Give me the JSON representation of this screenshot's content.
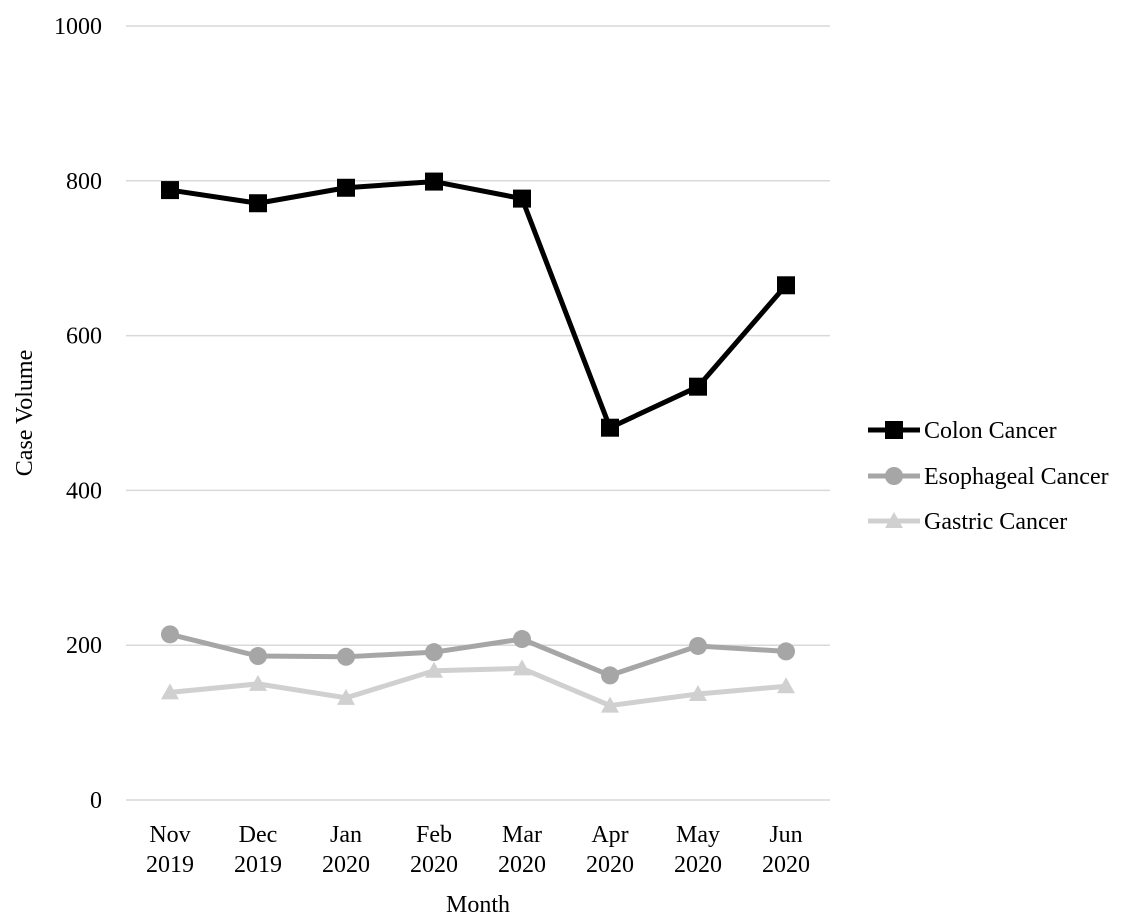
{
  "chart_data": {
    "type": "line",
    "xlabel": "Month",
    "ylabel": "Case Volume",
    "ylim": [
      0,
      1000
    ],
    "yticks": [
      0,
      200,
      400,
      600,
      800,
      1000
    ],
    "grid": "horizontal",
    "legend_position": "right",
    "categories": [
      [
        "Nov",
        "2019"
      ],
      [
        "Dec",
        "2019"
      ],
      [
        "Jan",
        "2020"
      ],
      [
        "Feb",
        "2020"
      ],
      [
        "Mar",
        "2020"
      ],
      [
        "Apr",
        "2020"
      ],
      [
        "May",
        "2020"
      ],
      [
        "Jun",
        "2020"
      ]
    ],
    "series": [
      {
        "name": "Colon Cancer",
        "marker": "square",
        "color": "#000000",
        "values": [
          788,
          771,
          791,
          799,
          777,
          481,
          534,
          665
        ]
      },
      {
        "name": "Esophageal Cancer",
        "marker": "circle",
        "color": "#a6a6a6",
        "values": [
          214,
          186,
          185,
          191,
          208,
          161,
          199,
          192
        ]
      },
      {
        "name": "Gastric Cancer",
        "marker": "triangle",
        "color": "#d0d0d0",
        "values": [
          139,
          150,
          132,
          167,
          170,
          122,
          137,
          147
        ]
      }
    ]
  }
}
